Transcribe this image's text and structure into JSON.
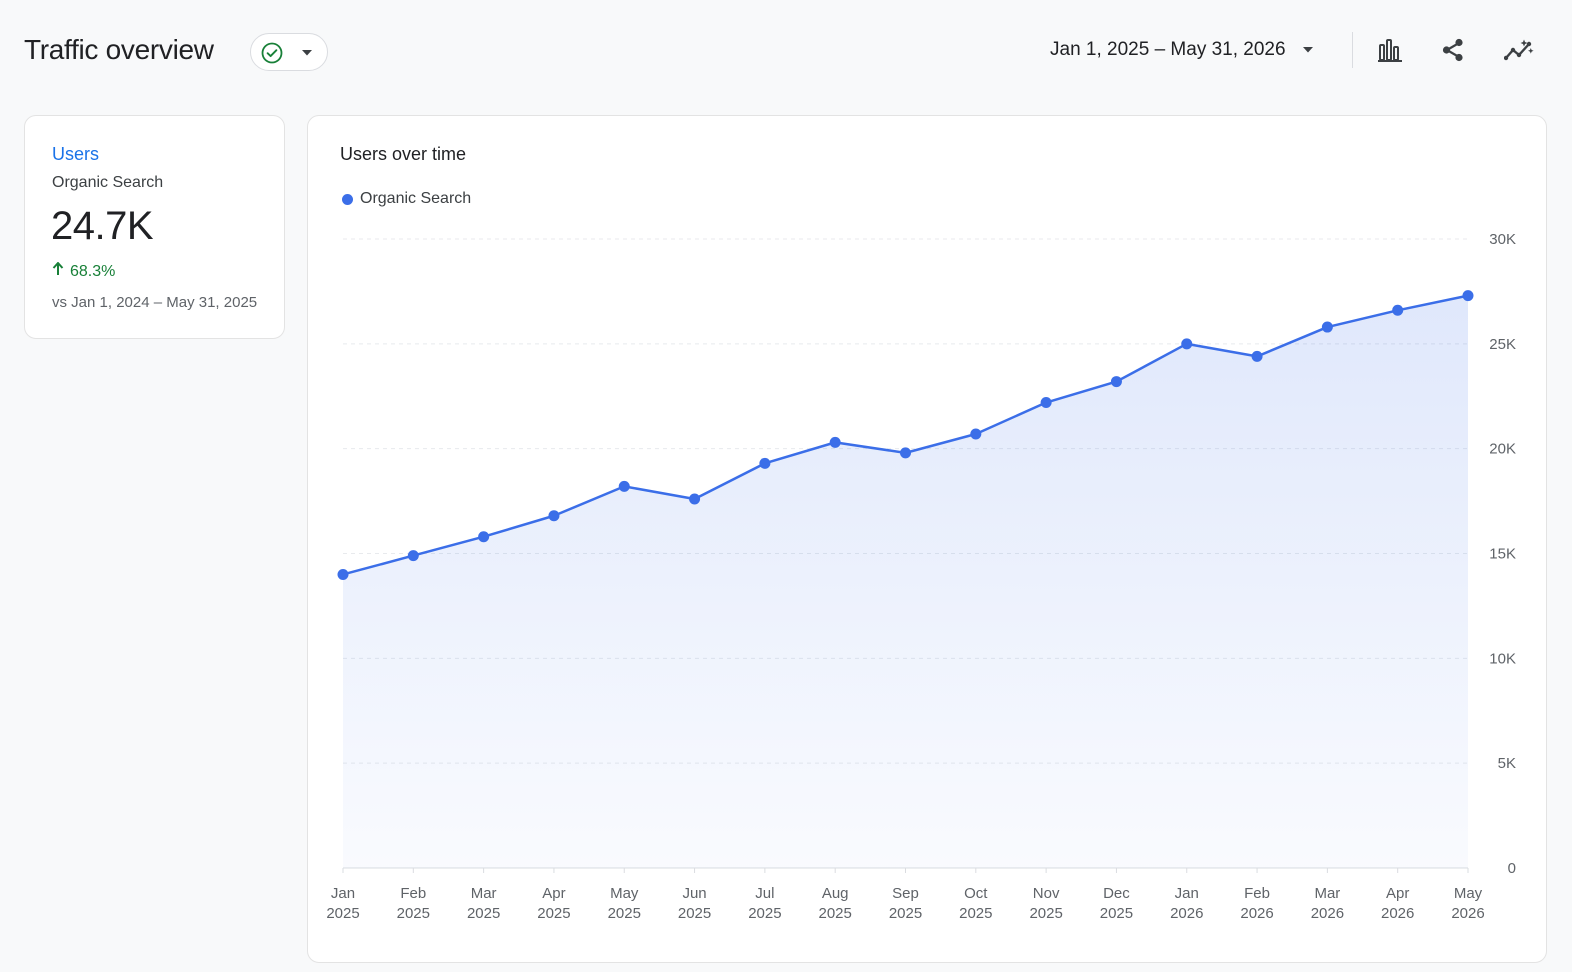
{
  "header": {
    "title": "Traffic overview",
    "date_range": "Jan 1, 2025 – May 31, 2026",
    "status_icon": "check-circle-icon",
    "status_color": "#188038",
    "tools": [
      "bar-chart-icon",
      "share-icon",
      "insights-icon"
    ]
  },
  "metric": {
    "label": "Users",
    "segment": "Organic Search",
    "value": "24.7K",
    "change": "68.3%",
    "change_direction": "up",
    "change_color": "#188038",
    "comparison": "vs Jan 1, 2024 – May 31, 2025"
  },
  "chart_data": {
    "type": "area",
    "title": "Users over time",
    "categories": [
      [
        "Jan",
        "2025"
      ],
      [
        "Feb",
        "2025"
      ],
      [
        "Mar",
        "2025"
      ],
      [
        "Apr",
        "2025"
      ],
      [
        "May",
        "2025"
      ],
      [
        "Jun",
        "2025"
      ],
      [
        "Jul",
        "2025"
      ],
      [
        "Aug",
        "2025"
      ],
      [
        "Sep",
        "2025"
      ],
      [
        "Oct",
        "2025"
      ],
      [
        "Nov",
        "2025"
      ],
      [
        "Dec",
        "2025"
      ],
      [
        "Jan",
        "2026"
      ],
      [
        "Feb",
        "2026"
      ],
      [
        "Mar",
        "2026"
      ],
      [
        "Apr",
        "2026"
      ],
      [
        "May",
        "2026"
      ]
    ],
    "series": [
      {
        "name": "Organic Search",
        "color": "#3b6ee8",
        "values": [
          14000,
          14900,
          15800,
          16800,
          18200,
          17600,
          19300,
          20300,
          19800,
          20700,
          22200,
          23200,
          25000,
          24400,
          25800,
          26600,
          27300
        ]
      }
    ],
    "ylim": [
      0,
      30000
    ],
    "yticks": [
      0,
      5000,
      10000,
      15000,
      20000,
      25000,
      30000
    ],
    "ytick_labels": [
      "0",
      "5K",
      "10K",
      "15K",
      "20K",
      "25K",
      "30K"
    ],
    "y_axis_side": "right",
    "grid": true,
    "legend_position": "top-left"
  }
}
